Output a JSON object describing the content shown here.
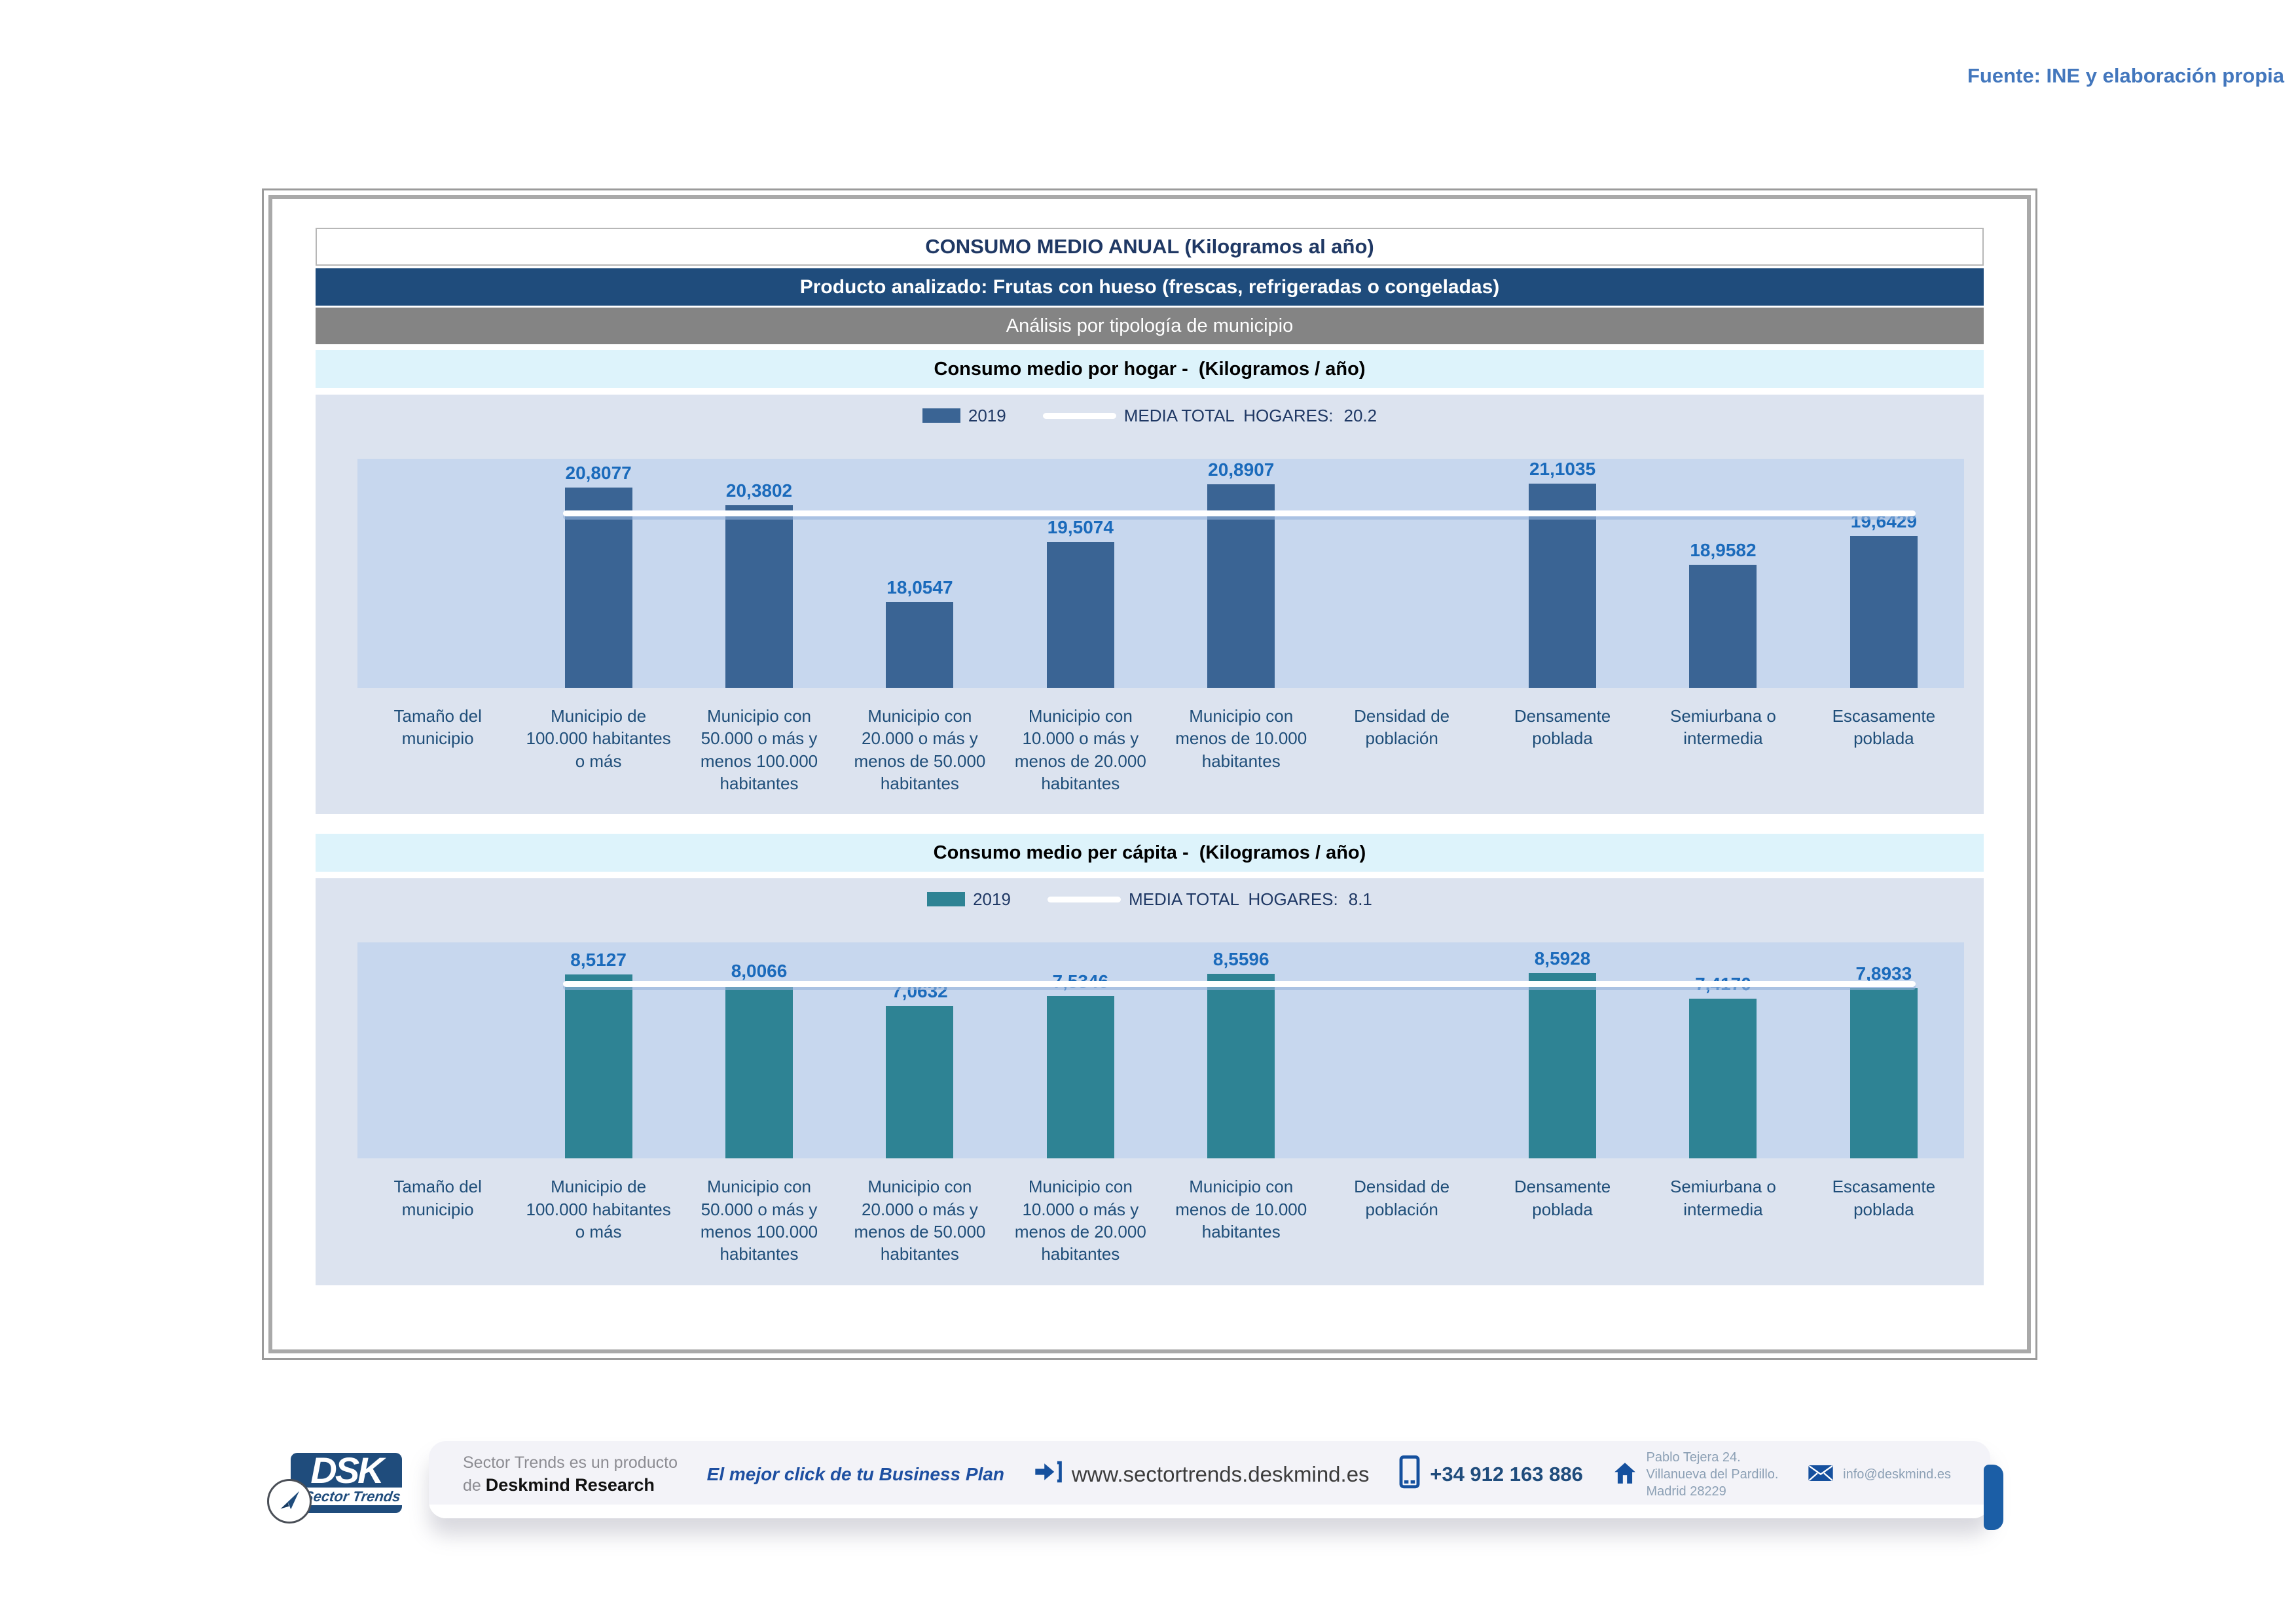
{
  "source_note": "Fuente: INE y elaboración propia",
  "header": {
    "title": "CONSUMO MEDIO ANUAL (Kilogramos al año)",
    "product": "Producto analizado: Frutas con hueso (frescas, refrigeradas o congeladas)",
    "analysis": "Análisis por tipología de municipio"
  },
  "chart_data": [
    {
      "type": "bar",
      "title": "Consumo medio por hogar -  (Kilogramos / año)",
      "legend": {
        "series_label": "2019",
        "media_label": "MEDIA TOTAL  HOGARES:",
        "media_value": "20.2"
      },
      "categories": [
        "Tamaño del municipio",
        "Municipio de 100.000 habitantes o más",
        "Municipio con 50.000 o más y menos 100.000 habitantes",
        "Municipio con 20.000 o más y menos de 50.000 habitantes",
        "Municipio con 10.000 o más y menos de 20.000 habitantes",
        "Municipio con menos de 10.000 habitantes",
        "Densidad de población",
        "Densamente poblada",
        "Semiurbana o intermedia",
        "Escasamente poblada"
      ],
      "values": [
        null,
        20.8077,
        20.3802,
        18.0547,
        19.5074,
        20.8907,
        null,
        21.1035,
        18.9582,
        19.6429
      ],
      "value_labels": [
        "",
        "20,8077",
        "20,3802",
        "18,0547",
        "19,5074",
        "20,8907",
        "",
        "21,1035",
        "18,9582",
        "19,6429"
      ],
      "media_total": 20.2,
      "ylim": [
        16,
        21.5
      ],
      "grid": false,
      "legend_position": "top-center",
      "bar_color": "#3A6494",
      "media_line_color": "#FFFFFF"
    },
    {
      "type": "bar",
      "title": "Consumo medio per cápita -  (Kilogramos / año)",
      "legend": {
        "series_label": "2019",
        "media_label": "MEDIA TOTAL  HOGARES:",
        "media_value": "8.1"
      },
      "categories": [
        "Tamaño del municipio",
        "Municipio de 100.000 habitantes o más",
        "Municipio con 50.000 o más y menos 100.000 habitantes",
        "Municipio con 20.000 o más y menos de 50.000 habitantes",
        "Municipio con 10.000 o más y menos de 20.000 habitantes",
        "Municipio con menos de 10.000 habitantes",
        "Densidad de población",
        "Densamente poblada",
        "Semiurbana o intermedia",
        "Escasamente poblada"
      ],
      "values": [
        null,
        8.5127,
        8.0066,
        7.0632,
        7.5346,
        8.5596,
        null,
        8.5928,
        7.417,
        7.8933
      ],
      "value_labels": [
        "",
        "8,5127",
        "8,0066",
        "7,0632",
        "7,5346",
        "8,5596",
        "",
        "8,5928",
        "7,4170",
        "7,8933"
      ],
      "media_total": 8.1,
      "ylim": [
        0,
        10
      ],
      "grid": false,
      "legend_position": "top-center",
      "bar_color": "#2E8394",
      "media_line_color": "#FFFFFF"
    }
  ],
  "footer": {
    "logo": {
      "acronym": "DSK",
      "brand": "Sector Trends"
    },
    "product_line1": "Sector Trends es un producto",
    "product_line2_prefix": "de ",
    "product_line2_name": "Deskmind Research",
    "tagline": "El mejor click de tu Business Plan",
    "website": "www.sectortrends.deskmind.es",
    "phone": "+34 912 163 886",
    "address_lines": [
      "Pablo Tejera 24.",
      "Villanueva del Pardillo.",
      "Madrid 28229"
    ],
    "email": "info@deskmind.es"
  },
  "colors": {
    "accent_navy": "#1F4C7C",
    "household_bar": "#3A6494",
    "percapita_bar": "#2E8394",
    "value_label_blue": "#1A6ABB",
    "source_note_blue": "#4377BD",
    "plot_background": "#C7D7EE",
    "chartbox_background": "#DCE3EF"
  }
}
